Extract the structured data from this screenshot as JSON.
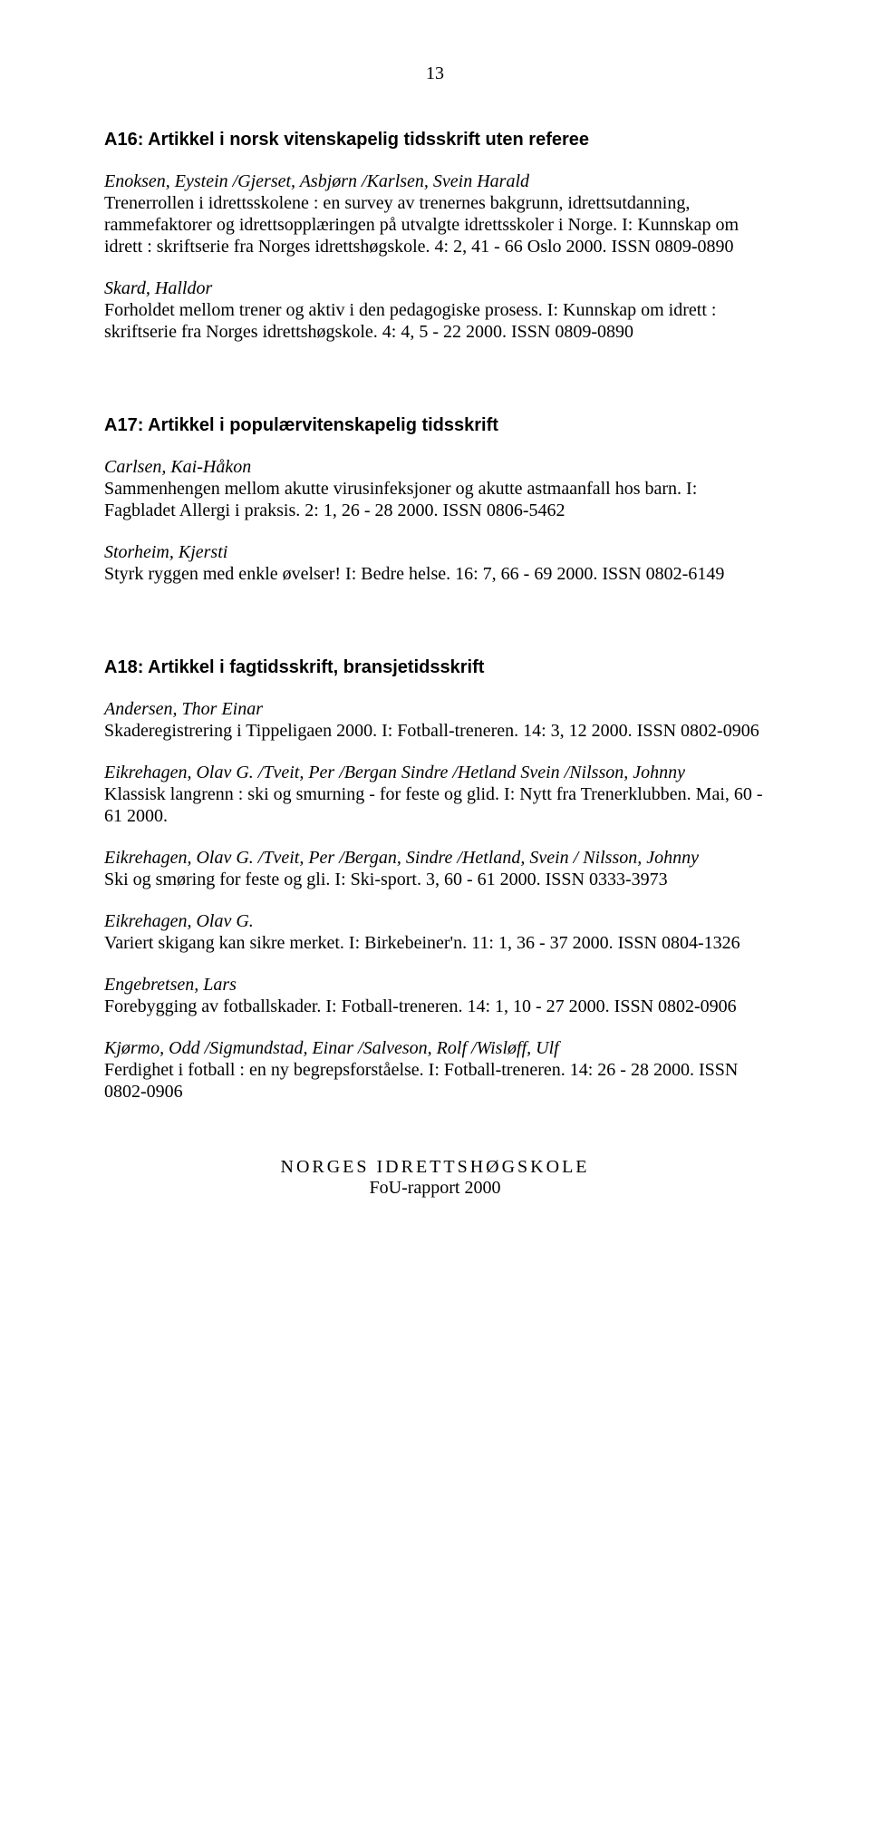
{
  "pageNumber": "13",
  "sections": [
    {
      "title": "A16: Artikkel i norsk vitenskapelig tidsskrift uten referee",
      "entries": [
        {
          "author": "Enoksen, Eystein /Gjerset, Asbjørn /Karlsen, Svein Harald",
          "text": "Trenerrollen i idrettsskolene : en survey av trenernes bakgrunn, idrettsutdanning, rammefaktorer og idrettsopplæringen på utvalgte idrettsskoler i Norge. I: Kunnskap om idrett : skriftserie fra Norges idrettshøgskole. 4: 2, 41 - 66 Oslo 2000. ISSN 0809-0890"
        },
        {
          "author": "Skard, Halldor",
          "text": "Forholdet mellom trener og aktiv i den pedagogiske prosess. I: Kunnskap om idrett : skriftserie fra Norges idrettshøgskole. 4: 4, 5 - 22 2000. ISSN 0809-0890"
        }
      ]
    },
    {
      "title": "A17: Artikkel i populærvitenskapelig tidsskrift",
      "entries": [
        {
          "author": "Carlsen, Kai-Håkon",
          "text": "Sammenhengen mellom akutte virusinfeksjoner og akutte astmaanfall hos barn. I: Fagbladet Allergi i praksis. 2: 1, 26 - 28 2000. ISSN 0806-5462"
        },
        {
          "author": "Storheim, Kjersti",
          "text": "Styrk ryggen med enkle øvelser! I: Bedre helse. 16: 7, 66 - 69 2000. ISSN 0802-6149"
        }
      ]
    },
    {
      "title": "A18: Artikkel i fagtidsskrift, bransjetidsskrift",
      "entries": [
        {
          "author": "Andersen, Thor Einar",
          "text": "Skaderegistrering i Tippeligaen 2000. I: Fotball-treneren. 14: 3, 12 2000. ISSN 0802-0906"
        },
        {
          "author": "Eikrehagen, Olav G. /Tveit, Per /Bergan Sindre /Hetland Svein /Nilsson, Johnny",
          "text": "Klassisk langrenn : ski og smurning - for feste og glid. I: Nytt fra Trenerklubben. Mai, 60 - 61 2000."
        },
        {
          "author": "Eikrehagen, Olav G. /Tveit, Per /Bergan, Sindre /Hetland, Svein / Nilsson, Johnny",
          "text": "Ski og smøring for feste og gli. I: Ski-sport. 3, 60 - 61 2000. ISSN 0333-3973"
        },
        {
          "author": "Eikrehagen, Olav G.",
          "text": "Variert skigang kan sikre merket. I: Birkebeiner'n. 11: 1, 36 - 37 2000. ISSN 0804-1326"
        },
        {
          "author": "Engebretsen, Lars",
          "text": "Forebygging av fotballskader. I: Fotball-treneren. 14: 1, 10 - 27 2000. ISSN 0802-0906"
        },
        {
          "author": "Kjørmo, Odd /Sigmundstad, Einar /Salveson, Rolf /Wisløff, Ulf",
          "text": "Ferdighet i fotball : en ny begrepsforståelse. I: Fotball-treneren. 14: 26 - 28 2000. ISSN 0802-0906"
        }
      ]
    }
  ],
  "footer": {
    "line1": "NORGES IDRETTSHØGSKOLE",
    "line2": "FoU-rapport 2000"
  }
}
